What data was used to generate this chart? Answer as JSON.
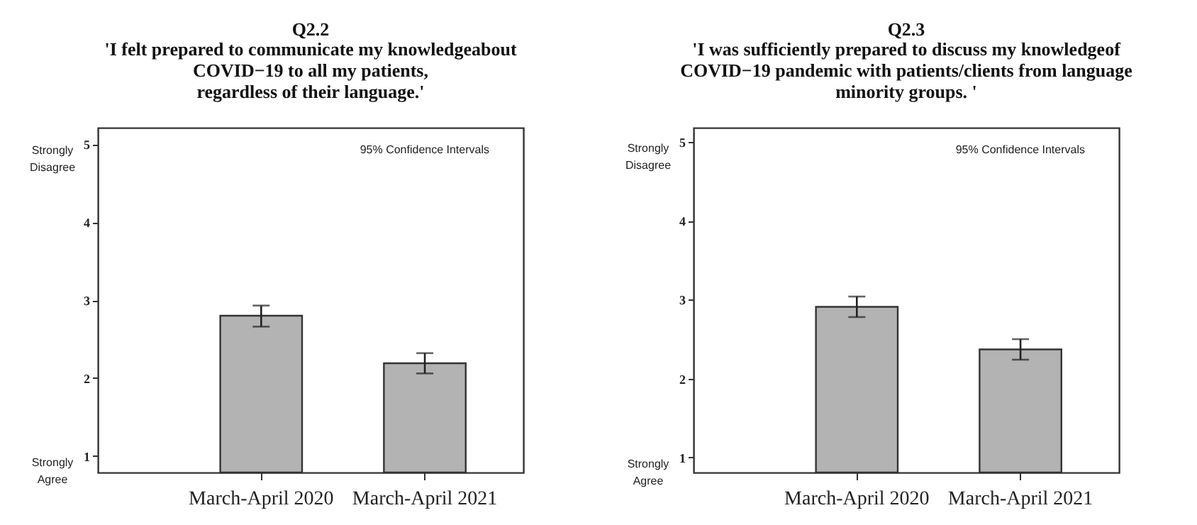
{
  "chart_data": [
    {
      "type": "bar",
      "title": "Q2.2",
      "subtitle": "'I felt prepared to communicate my knowledgeabout\nCOVID−19 to all my patients,\nregardless of their language.'",
      "categories": [
        "March-April 2020",
        "March-April 2021"
      ],
      "values": [
        2.8,
        2.19
      ],
      "color": "#b3b3b3",
      "errors": [
        [
          2.66,
          2.93
        ],
        [
          2.06,
          2.32
        ]
      ],
      "ylim": [
        0.79,
        5.21
      ],
      "yticks": [
        1,
        2,
        3,
        4,
        5
      ],
      "grid": false,
      "annotations": [
        "Strongly Disagree",
        "Strongly Agree",
        "95% Confidence Intervals"
      ]
    },
    {
      "type": "bar",
      "title": "Q2.3",
      "subtitle": "'I was sufficiently prepared to discuss my knowledgeof\nCOVID−19 pandemic with patients/clients from language\nminority groups. '",
      "categories": [
        "March-April 2020",
        "March-April 2021"
      ],
      "values": [
        2.91,
        2.37
      ],
      "color": "#b3b3b3",
      "errors": [
        [
          2.78,
          3.04
        ],
        [
          2.24,
          2.5
        ]
      ],
      "ylim": [
        0.81,
        5.18
      ],
      "yticks": [
        1,
        2,
        3,
        4,
        5
      ],
      "grid": false,
      "annotations": [
        "Strongly Disagree",
        "Strongly Agree",
        "95% Confidence Intervals"
      ]
    }
  ]
}
